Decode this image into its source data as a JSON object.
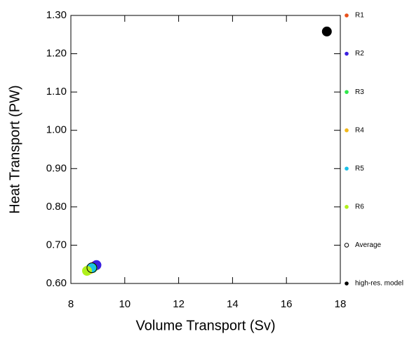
{
  "chart_data": {
    "type": "scatter",
    "x_label": "Volume Transport (Sv)",
    "y_label": "Heat Transport (PW)",
    "xlim": [
      8,
      18
    ],
    "xticks": [
      8,
      10,
      12,
      14,
      16,
      18
    ],
    "ylim": [
      0.6,
      1.3
    ],
    "yticks": [
      {
        "value": 0.6,
        "label": "0.60"
      },
      {
        "value": 0.7,
        "label": "0.70"
      },
      {
        "value": 0.8,
        "label": "0.80"
      },
      {
        "value": 0.9,
        "label": "0.90"
      },
      {
        "value": 1.0,
        "label": "1.00"
      },
      {
        "value": 1.1,
        "label": "1.10"
      },
      {
        "value": 1.2,
        "label": "1.20"
      },
      {
        "value": 1.3,
        "label": "1.30"
      }
    ],
    "series": [
      {
        "name": "R1",
        "color": "#e8501a",
        "filled": true,
        "x": [
          8.9
        ],
        "values": [
          0.646
        ]
      },
      {
        "name": "R2",
        "color": "#3a1fe0",
        "filled": true,
        "x": [
          8.95
        ],
        "values": [
          0.648
        ]
      },
      {
        "name": "R3",
        "color": "#2ee84a",
        "filled": true,
        "x": [
          8.8
        ],
        "values": [
          0.64
        ]
      },
      {
        "name": "R4",
        "color": "#f2b81a",
        "filled": true,
        "x": [
          8.7
        ],
        "values": [
          0.637
        ]
      },
      {
        "name": "R5",
        "color": "#1ac0e8",
        "filled": true,
        "x": [
          8.75
        ],
        "values": [
          0.64
        ]
      },
      {
        "name": "R6",
        "color": "#b0f01a",
        "filled": true,
        "x": [
          8.6
        ],
        "values": [
          0.633
        ]
      },
      {
        "name": "Average",
        "color": "#000000",
        "filled": false,
        "x": [
          8.78
        ],
        "values": [
          0.641
        ]
      },
      {
        "name": "high-res. model",
        "color": "#000000",
        "filled": true,
        "x": [
          17.5
        ],
        "values": [
          1.258
        ]
      }
    ]
  }
}
